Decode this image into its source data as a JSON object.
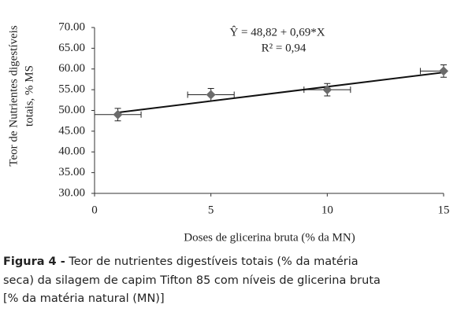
{
  "chart_data": {
    "type": "scatter",
    "y_label_lines": [
      "Teor de Nutrientes digestíveis",
      "totais, % MS"
    ],
    "x_label": "Doses de glicerina bruta (% da MN)",
    "x": [
      1,
      5,
      10,
      15
    ],
    "series": [
      {
        "color": "#6b6b6b",
        "values": [
          49,
          53.8,
          55,
          59.5
        ],
        "y_err": [
          1.5,
          1.5,
          1.5,
          1.5
        ],
        "x_err": [
          1,
          1,
          1,
          1
        ]
      }
    ],
    "regression": {
      "intercept": 48.82,
      "slope": 0.69,
      "label": "Ŷ = 48,82 + 0,69*X",
      "r2": 0.94,
      "r2_label": "R² = 0,94"
    },
    "xlim": [
      0,
      15
    ],
    "xticks": [
      0,
      5,
      10,
      15
    ],
    "ylim": [
      30,
      70
    ],
    "yticks": [
      {
        "value": 30,
        "label": "30.00"
      },
      {
        "value": 35,
        "label": "35.00"
      },
      {
        "value": 40,
        "label": "40.00"
      },
      {
        "value": 45,
        "label": "45.00"
      },
      {
        "value": 50,
        "label": "50.00"
      },
      {
        "value": 55,
        "label": "55.00"
      },
      {
        "value": 60,
        "label": "60.00"
      },
      {
        "value": 65,
        "label": "65.00"
      },
      {
        "value": 70,
        "label": "70.00"
      }
    ]
  },
  "caption": {
    "label": "Figura 4 -",
    "lines": [
      "Teor de nutrientes digestíveis totais (% da matéria",
      "seca) da silagem de capim Tifton 85 com níveis de glicerina bruta",
      "[% da matéria natural (MN)]"
    ]
  }
}
